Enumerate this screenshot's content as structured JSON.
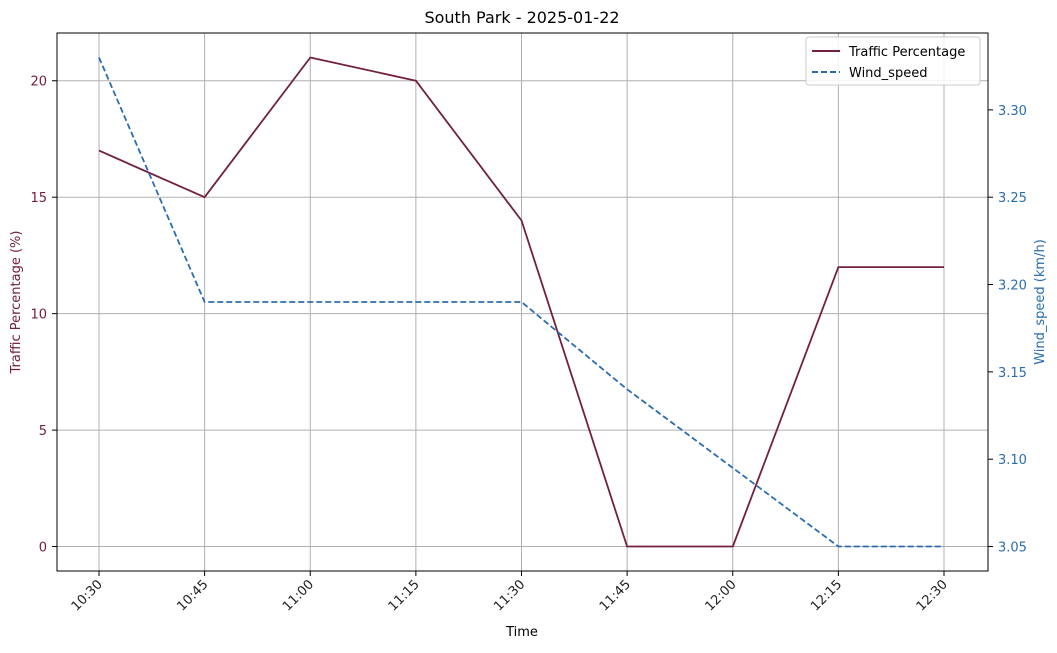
{
  "chart_data": {
    "type": "line",
    "title": "South Park - 2025-01-22",
    "xlabel": "Time",
    "ylabel_left": "Traffic Percentage (%)",
    "ylabel_right": "Wind_speed (km/h)",
    "categories": [
      "10:30",
      "10:45",
      "11:00",
      "11:15",
      "11:30",
      "11:45",
      "12:00",
      "12:15",
      "12:30"
    ],
    "series": [
      {
        "name": "Traffic Percentage",
        "axis": "left",
        "color": "#722040",
        "line_style": "solid",
        "values": [
          17,
          15,
          21,
          20,
          14,
          0,
          0,
          12,
          12
        ]
      },
      {
        "name": "Wind_speed",
        "axis": "right",
        "color": "#2a6db0",
        "line_style": "dashed",
        "values": [
          3.33,
          3.19,
          3.19,
          3.19,
          3.19,
          3.14,
          3.095,
          3.05,
          3.05
        ]
      }
    ],
    "ylim_left": [
      -1.05,
      22.05
    ],
    "yticks_left": [
      "0",
      "5",
      "10",
      "15",
      "20"
    ],
    "ylim_right": [
      3.036,
      3.344
    ],
    "yticks_right": [
      "3.05",
      "3.10",
      "3.15",
      "3.20",
      "3.25",
      "3.30"
    ],
    "left_axis_color": "#722040",
    "right_axis_color": "#2a6db0",
    "grid": true,
    "legend_position": "top-right"
  }
}
